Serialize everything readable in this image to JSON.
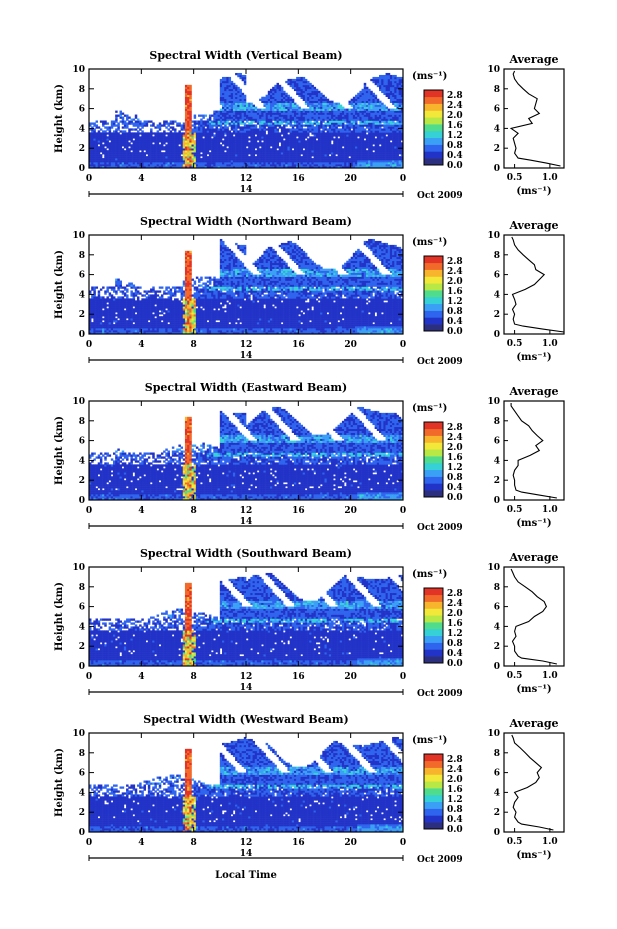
{
  "colors": {
    "scale": [
      "#2b2f7e",
      "#2233c8",
      "#2f64ee",
      "#3aa0f5",
      "#35d1d6",
      "#4fdc8c",
      "#b7e845",
      "#f2e83a",
      "#f8b42c",
      "#f26a2a",
      "#e23327"
    ],
    "missing": "#ffffff",
    "frame": "#000000"
  },
  "figure": {
    "xlabel": "Local Time"
  },
  "panels": [
    {
      "title": "Spectral Width (Vertical Beam)",
      "avg_title": "Average",
      "avg_xticks": [
        "0.5",
        "1.0"
      ]
    },
    {
      "title": "Spectral Width (Northward Beam)",
      "avg_title": "Average",
      "avg_xticks": [
        "0.5",
        "1.0"
      ]
    },
    {
      "title": "Spectral Width (Eastward Beam)",
      "avg_title": "Average",
      "avg_xticks": [
        "0.5",
        "1.0"
      ]
    },
    {
      "title": "Spectral Width (Southward Beam)",
      "avg_title": "Average",
      "avg_xticks": [
        "0.5",
        "1.0"
      ]
    },
    {
      "title": "Spectral Width (Westward Beam)",
      "avg_title": "Average",
      "avg_xticks": [
        "0.5",
        "1.0"
      ]
    }
  ],
  "chart_data": {
    "type": "heatmap",
    "xlabel": "Local Time",
    "ylabel": "Height (km)",
    "xlim": [
      0,
      24
    ],
    "ylim": [
      0,
      10
    ],
    "xticks": [
      "0",
      "4",
      "8",
      "12",
      "16",
      "20",
      "0"
    ],
    "yticks": [
      "0",
      "2",
      "4",
      "6",
      "8",
      "10"
    ],
    "date_day": "14",
    "date_month_year": "Oct 2009",
    "colorbar": {
      "unit": "(ms⁻¹)",
      "ticks": [
        "0.0",
        "0.4",
        "0.8",
        "1.2",
        "1.6",
        "2.0",
        "2.4",
        "2.8"
      ],
      "range": [
        0,
        3.0
      ]
    },
    "average_profile": {
      "xlabel": "(ms⁻¹)",
      "xlim": [
        0.35,
        1.2
      ],
      "yticks": [
        "0",
        "2",
        "4",
        "6",
        "8",
        "10"
      ],
      "series": [
        {
          "beam": "Vertical",
          "height_km": [
            0.2,
            0.5,
            0.8,
            1.0,
            1.5,
            2.0,
            2.5,
            3.0,
            3.5,
            4.0,
            4.5,
            5.0,
            5.5,
            6.0,
            6.5,
            7.0,
            7.5,
            8.0,
            8.5,
            9.0,
            9.5,
            9.8
          ],
          "width_ms": [
            1.15,
            0.95,
            0.72,
            0.55,
            0.5,
            0.52,
            0.5,
            0.48,
            0.55,
            0.45,
            0.75,
            0.7,
            0.85,
            0.78,
            0.8,
            0.82,
            0.7,
            0.62,
            0.55,
            0.5,
            0.48,
            0.5
          ]
        },
        {
          "beam": "Northward",
          "height_km": [
            0.2,
            0.5,
            0.8,
            1.0,
            1.5,
            2.0,
            2.5,
            3.0,
            3.5,
            4.0,
            4.5,
            5.0,
            5.5,
            6.0,
            6.5,
            7.0,
            7.5,
            8.0,
            8.5,
            9.0,
            9.5,
            9.8
          ],
          "width_ms": [
            1.2,
            0.9,
            0.62,
            0.5,
            0.48,
            0.5,
            0.47,
            0.52,
            0.5,
            0.47,
            0.65,
            0.78,
            0.85,
            0.92,
            0.8,
            0.78,
            0.7,
            0.62,
            0.55,
            0.5,
            0.48,
            0.46
          ]
        },
        {
          "beam": "Eastward",
          "height_km": [
            0.2,
            0.5,
            0.8,
            1.0,
            1.5,
            2.0,
            2.5,
            3.0,
            3.5,
            4.0,
            4.5,
            5.0,
            5.5,
            6.0,
            6.5,
            7.0,
            7.5,
            8.0,
            8.5,
            9.0,
            9.5,
            9.8
          ],
          "width_ms": [
            1.1,
            0.85,
            0.6,
            0.52,
            0.5,
            0.5,
            0.48,
            0.5,
            0.55,
            0.55,
            0.72,
            0.85,
            0.8,
            0.9,
            0.82,
            0.75,
            0.7,
            0.6,
            0.55,
            0.5,
            0.45,
            0.45
          ]
        },
        {
          "beam": "Southward",
          "height_km": [
            0.2,
            0.5,
            0.8,
            1.0,
            1.5,
            2.0,
            2.5,
            3.0,
            3.5,
            4.0,
            4.5,
            5.0,
            5.5,
            6.0,
            6.5,
            7.0,
            7.5,
            8.0,
            8.5,
            9.0,
            9.5,
            9.8
          ],
          "width_ms": [
            1.1,
            0.9,
            0.6,
            0.55,
            0.5,
            0.5,
            0.47,
            0.52,
            0.5,
            0.52,
            0.7,
            0.78,
            0.9,
            0.95,
            0.92,
            0.82,
            0.75,
            0.65,
            0.55,
            0.5,
            0.47,
            0.45
          ]
        },
        {
          "beam": "Westward",
          "height_km": [
            0.2,
            0.5,
            0.8,
            1.0,
            1.5,
            2.0,
            2.5,
            3.0,
            3.5,
            4.0,
            4.5,
            5.0,
            5.5,
            6.0,
            6.5,
            7.0,
            7.5,
            8.0,
            8.5,
            9.0,
            9.5,
            9.8
          ],
          "width_ms": [
            1.05,
            0.85,
            0.6,
            0.55,
            0.5,
            0.52,
            0.48,
            0.5,
            0.55,
            0.5,
            0.68,
            0.8,
            0.85,
            0.82,
            0.88,
            0.8,
            0.72,
            0.65,
            0.58,
            0.5,
            0.48,
            0.46
          ]
        }
      ]
    }
  }
}
